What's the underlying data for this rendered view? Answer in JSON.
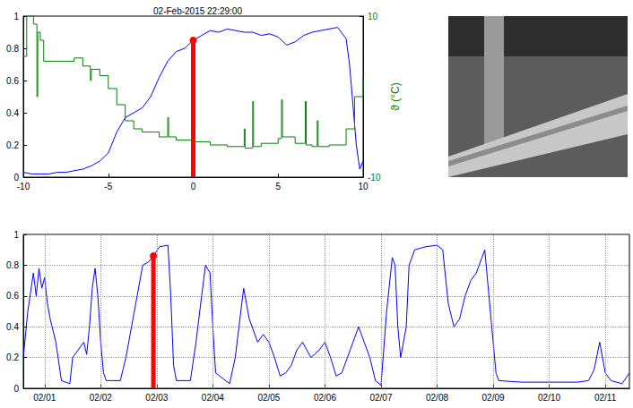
{
  "chart_data": [
    {
      "type": "line",
      "title": "02-Feb-2015 22:29:00",
      "xlim": [
        -10,
        10
      ],
      "xticks": [
        -10,
        -5,
        0,
        5,
        10
      ],
      "ylim": [
        0,
        1
      ],
      "yticks": [
        0,
        0.2,
        0.4,
        0.6,
        0.8,
        1
      ],
      "y2lim": [
        -10,
        10
      ],
      "y2ticks": [
        -10,
        10
      ],
      "y2label": "ϑ (°C)",
      "grid": false,
      "series": [
        {
          "type": "line",
          "color": "#0000ff",
          "x": [
            -10,
            -9.5,
            -9,
            -8.5,
            -8,
            -7.5,
            -7,
            -6.5,
            -6,
            -5.5,
            -5,
            -4.5,
            -4,
            -3.5,
            -3,
            -2.5,
            -2,
            -1.5,
            -1,
            -0.5,
            0,
            0.5,
            1,
            1.5,
            2,
            2.5,
            3,
            3.5,
            4,
            4.5,
            5,
            5.5,
            6,
            6.5,
            7,
            7.5,
            8,
            8.5,
            9,
            9.2,
            9.4,
            9.6,
            9.8,
            10
          ],
          "values": [
            0.03,
            0.02,
            0.02,
            0.02,
            0.03,
            0.03,
            0.04,
            0.05,
            0.07,
            0.1,
            0.15,
            0.28,
            0.37,
            0.4,
            0.43,
            0.5,
            0.62,
            0.72,
            0.78,
            0.8,
            0.85,
            0.88,
            0.91,
            0.9,
            0.92,
            0.91,
            0.9,
            0.9,
            0.88,
            0.89,
            0.87,
            0.82,
            0.84,
            0.88,
            0.9,
            0.91,
            0.92,
            0.93,
            0.86,
            0.7,
            0.45,
            0.2,
            0.05,
            0.1
          ]
        },
        {
          "type": "line",
          "color": "#008000",
          "axis": "y2",
          "line_style": "step",
          "x": [
            -10,
            -9.8,
            -9.4,
            -9.2,
            -9.15,
            -9,
            -8.8,
            -7,
            -6.5,
            -6.05,
            -6,
            -5.5,
            -5,
            -4.5,
            -4,
            -3.5,
            -3,
            -2,
            -1.5,
            -1.45,
            -1,
            0,
            1,
            2,
            3,
            3.05,
            3.5,
            3.55,
            4,
            5,
            5.2,
            5.25,
            5.5,
            6,
            6.6,
            6.65,
            7,
            7.3,
            7.35,
            8,
            9,
            9.5,
            10
          ],
          "values": [
            5,
            10,
            9,
            0,
            8,
            7,
            4.4,
            4.8,
            3.8,
            2,
            3.4,
            2.6,
            1,
            -1,
            -3,
            -4,
            -4.4,
            -5,
            -2.6,
            -5,
            -5.4,
            -5.6,
            -6,
            -6.2,
            -4,
            -6.4,
            -0.6,
            -6.2,
            -5.8,
            -5.2,
            -0.4,
            -5,
            -5,
            -5.8,
            -0.6,
            -6,
            -6.2,
            -3,
            -6.2,
            -6,
            -4,
            0,
            2.4
          ]
        },
        {
          "type": "stem",
          "color": "#ff0000",
          "marker": "circle",
          "x": [
            0
          ],
          "values": [
            0.85
          ]
        }
      ]
    },
    {
      "type": "line",
      "xlim": [
        0.62,
        11.43
      ],
      "xticks": [
        {
          "value": 1,
          "label": "02/01"
        },
        {
          "value": 2,
          "label": "02/02"
        },
        {
          "value": 3,
          "label": "02/03"
        },
        {
          "value": 4,
          "label": "02/04"
        },
        {
          "value": 5,
          "label": "02/05"
        },
        {
          "value": 6,
          "label": "02/06"
        },
        {
          "value": 7,
          "label": "02/07"
        },
        {
          "value": 8,
          "label": "02/08"
        },
        {
          "value": 9,
          "label": "02/09"
        },
        {
          "value": 10,
          "label": "02/10"
        },
        {
          "value": 11,
          "label": "02/11"
        }
      ],
      "ylim": [
        0,
        1
      ],
      "yticks": [
        0,
        0.2,
        0.4,
        0.6,
        0.8,
        1
      ],
      "grid": true,
      "series": [
        {
          "type": "line",
          "color": "#0000ff",
          "x": [
            0.62,
            0.7,
            0.8,
            0.85,
            0.9,
            0.95,
            1.0,
            1.05,
            1.1,
            1.2,
            1.3,
            1.45,
            1.5,
            1.6,
            1.7,
            1.75,
            1.8,
            1.85,
            1.9,
            1.95,
            2.0,
            2.05,
            2.1,
            2.35,
            2.45,
            2.55,
            2.65,
            2.75,
            2.85,
            2.94,
            3.05,
            3.2,
            3.25,
            3.3,
            3.35,
            3.6,
            3.7,
            3.8,
            3.87,
            3.95,
            4.0,
            4.05,
            4.3,
            4.4,
            4.5,
            4.55,
            4.65,
            4.8,
            4.9,
            5.0,
            5.1,
            5.2,
            5.3,
            5.4,
            5.5,
            5.6,
            5.75,
            5.9,
            6.0,
            6.1,
            6.2,
            6.3,
            6.4,
            6.5,
            6.6,
            6.7,
            6.8,
            6.9,
            7.0,
            7.1,
            7.2,
            7.25,
            7.3,
            7.35,
            7.45,
            7.5,
            7.6,
            7.8,
            8.0,
            8.1,
            8.2,
            8.3,
            8.4,
            8.5,
            8.6,
            8.7,
            8.8,
            8.85,
            8.95,
            9.05,
            9.1,
            9.5,
            10.0,
            10.5,
            10.7,
            10.8,
            10.9,
            11.0,
            11.1,
            11.3,
            11.43
          ],
          "values": [
            0.2,
            0.5,
            0.75,
            0.6,
            0.78,
            0.65,
            0.72,
            0.55,
            0.45,
            0.3,
            0.05,
            0.03,
            0.2,
            0.25,
            0.3,
            0.22,
            0.4,
            0.65,
            0.78,
            0.6,
            0.3,
            0.1,
            0.05,
            0.05,
            0.2,
            0.4,
            0.6,
            0.8,
            0.82,
            0.86,
            0.92,
            0.93,
            0.6,
            0.15,
            0.05,
            0.05,
            0.3,
            0.6,
            0.8,
            0.75,
            0.4,
            0.1,
            0.03,
            0.2,
            0.5,
            0.65,
            0.45,
            0.3,
            0.35,
            0.3,
            0.2,
            0.08,
            0.1,
            0.15,
            0.25,
            0.3,
            0.2,
            0.25,
            0.3,
            0.2,
            0.08,
            0.1,
            0.2,
            0.3,
            0.4,
            0.3,
            0.2,
            0.05,
            0.02,
            0.5,
            0.85,
            0.8,
            0.4,
            0.2,
            0.4,
            0.8,
            0.9,
            0.92,
            0.93,
            0.9,
            0.55,
            0.4,
            0.45,
            0.6,
            0.7,
            0.75,
            0.85,
            0.9,
            0.5,
            0.1,
            0.05,
            0.04,
            0.04,
            0.04,
            0.05,
            0.12,
            0.3,
            0.1,
            0.05,
            0.03,
            0.1
          ]
        },
        {
          "type": "stem",
          "color": "#ff0000",
          "marker": "circle",
          "x": [
            2.94
          ],
          "values": [
            0.86
          ]
        }
      ]
    }
  ]
}
